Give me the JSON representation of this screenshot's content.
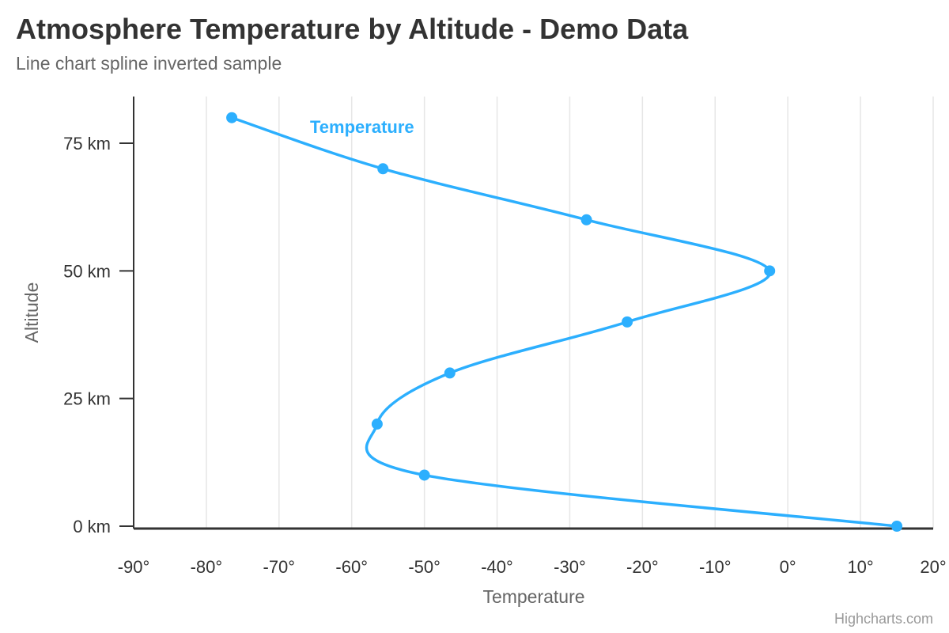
{
  "title": "Atmosphere Temperature by Altitude - Demo Data",
  "subtitle": "Line chart spline inverted sample",
  "credits": "Highcharts.com",
  "colors": {
    "series": "#2caffe",
    "grid": "#e6e6e6",
    "axis_line": "#333333",
    "title": "#333333",
    "subtitle": "#666666",
    "axis_title": "#666666",
    "tick_label": "#333333",
    "credits": "#999999"
  },
  "chart_data": {
    "type": "line",
    "inverted": true,
    "spline": true,
    "title": "Atmosphere Temperature by Altitude - Demo Data",
    "subtitle": "Line chart spline inverted sample",
    "xlabel": "Temperature",
    "ylabel": "Altitude",
    "xlim": [
      -90,
      20
    ],
    "ylim": [
      0,
      85
    ],
    "x_ticks": [
      "-90°",
      "-80°",
      "-70°",
      "-60°",
      "-50°",
      "-40°",
      "-30°",
      "-20°",
      "-10°",
      "0°",
      "10°",
      "20°"
    ],
    "x_tick_values": [
      -90,
      -80,
      -70,
      -60,
      -50,
      -40,
      -30,
      -20,
      -10,
      0,
      10,
      20
    ],
    "y_ticks": [
      "0 km",
      "25 km",
      "50 km",
      "75 km"
    ],
    "y_tick_values": [
      0,
      25,
      50,
      75
    ],
    "grid": "vertical",
    "series": [
      {
        "name": "Temperature",
        "points": [
          {
            "altitude": 0,
            "temperature": 15
          },
          {
            "altitude": 10,
            "temperature": -50
          },
          {
            "altitude": 20,
            "temperature": -56.5
          },
          {
            "altitude": 30,
            "temperature": -46.5
          },
          {
            "altitude": 40,
            "temperature": -22.1
          },
          {
            "altitude": 50,
            "temperature": -2.5
          },
          {
            "altitude": 60,
            "temperature": -27.7
          },
          {
            "altitude": 70,
            "temperature": -55.7
          },
          {
            "altitude": 80,
            "temperature": -76.5
          }
        ]
      }
    ]
  }
}
